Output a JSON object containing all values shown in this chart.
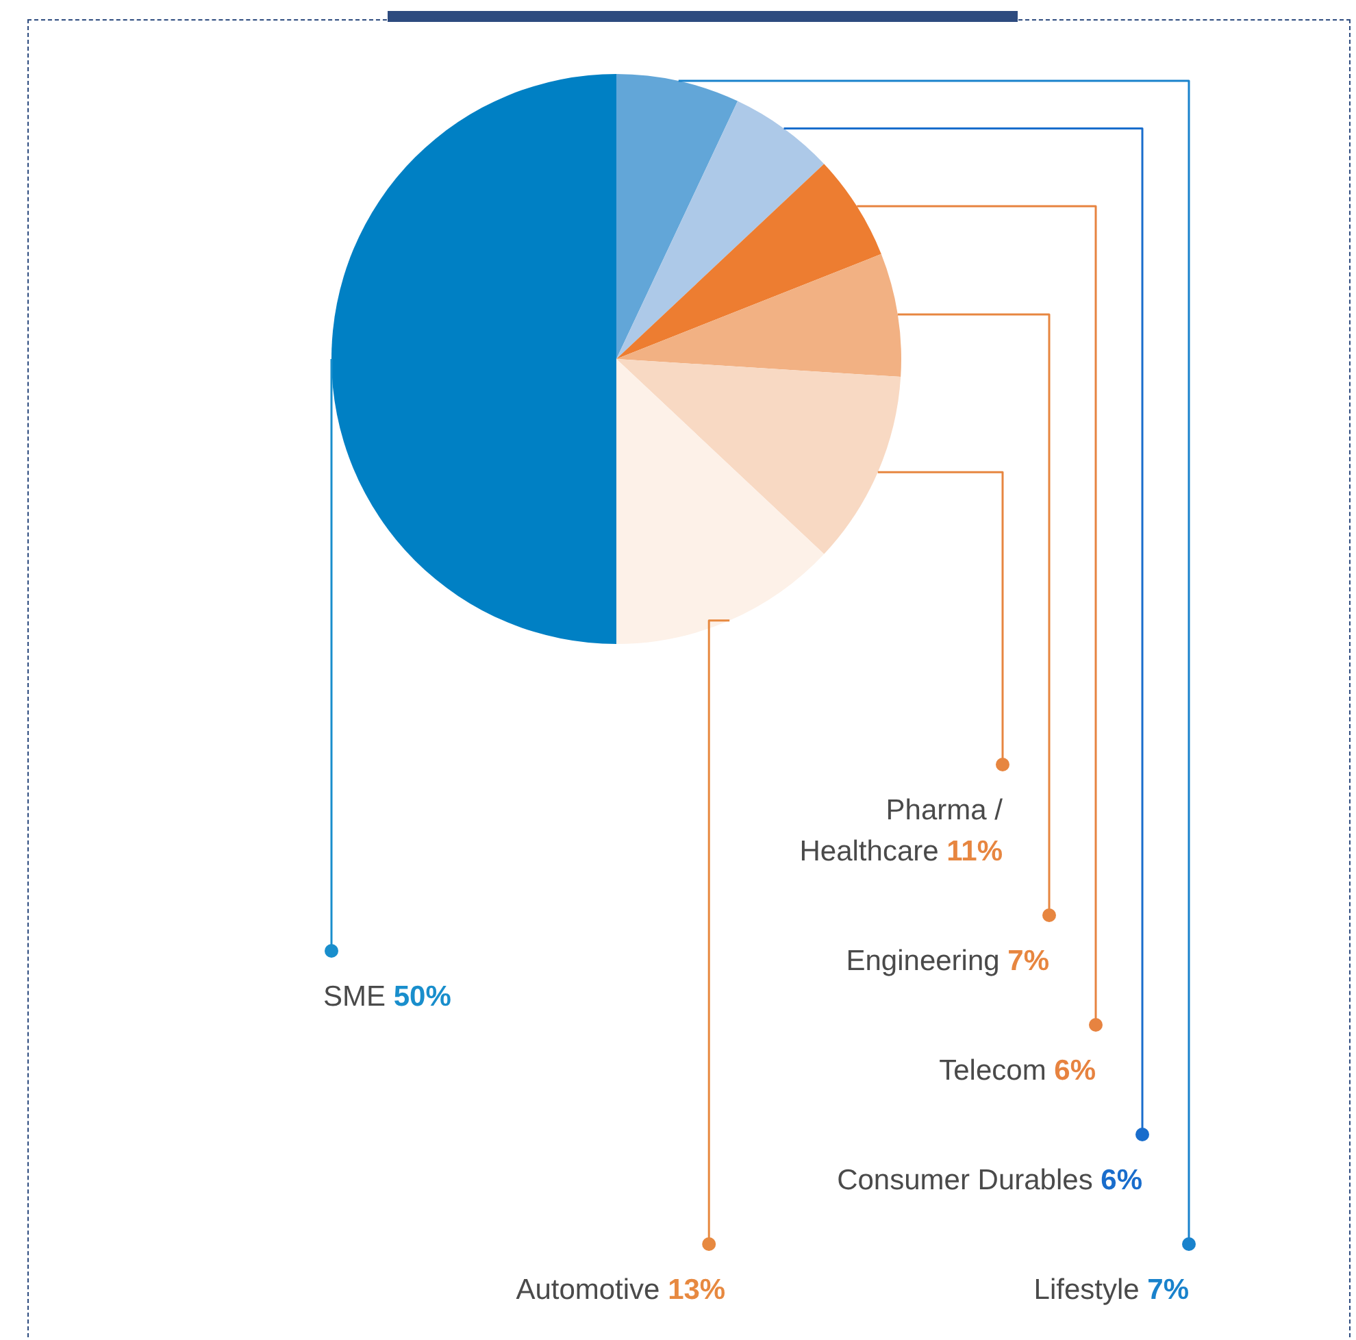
{
  "chart_data": {
    "type": "pie",
    "categories": [
      "Lifestyle",
      "Consumer Durables",
      "Telecom",
      "Engineering",
      "Pharma / Healthcare",
      "Automotive",
      "SME"
    ],
    "values": [
      7,
      6,
      6,
      7,
      11,
      13,
      50
    ],
    "colors": [
      "#62a6d8",
      "#adc9e8",
      "#ed7d31",
      "#f2b183",
      "#f8d9c3",
      "#fdf1e8",
      "#0080c4"
    ],
    "value_labels": [
      "7%",
      "6%",
      "6%",
      "7%",
      "11%",
      "13%",
      "50%"
    ]
  }
}
